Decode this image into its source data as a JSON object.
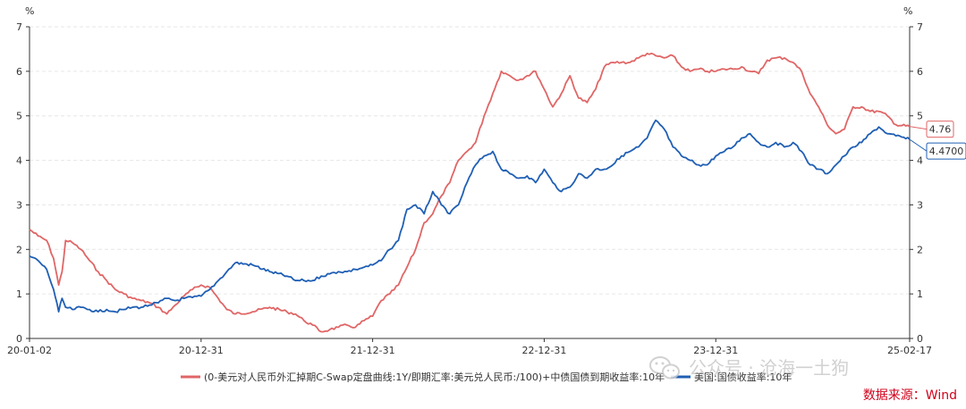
{
  "chart_data": {
    "type": "line",
    "y_unit_left": "%",
    "y_unit_right": "%",
    "ylim": [
      0,
      7
    ],
    "yticks": [
      "0",
      "1",
      "2",
      "3",
      "4",
      "5",
      "6",
      "7"
    ],
    "x_tick_labels": [
      "20-01-02",
      "20-12-31",
      "21-12-31",
      "22-12-31",
      "23-12-31",
      "25-02-17"
    ],
    "x_range": [
      2020.0,
      2025.13
    ],
    "x_tick_positions": [
      2020.0,
      2021.0,
      2022.0,
      2023.0,
      2024.0,
      2025.13
    ],
    "grid": "horizontal-dashed",
    "legend_position": "bottom",
    "series": [
      {
        "name": "(0-美元对人民币外汇掉期C-Swap定盘曲线:1Y/即期汇率:美元兑人民币:/100)+中债国债到期收益率:10年",
        "color": "#e06666",
        "end_label": "4.76",
        "x": [
          2020.0,
          2020.05,
          2020.1,
          2020.14,
          2020.17,
          2020.19,
          2020.21,
          2020.25,
          2020.3,
          2020.35,
          2020.4,
          2020.45,
          2020.5,
          2020.55,
          2020.6,
          2020.65,
          2020.7,
          2020.75,
          2020.8,
          2020.85,
          2020.9,
          2020.95,
          2021.0,
          2021.05,
          2021.1,
          2021.15,
          2021.2,
          2021.3,
          2021.4,
          2021.5,
          2021.55,
          2021.6,
          2021.65,
          2021.7,
          2021.75,
          2021.8,
          2021.85,
          2021.9,
          2021.95,
          2022.0,
          2022.05,
          2022.1,
          2022.15,
          2022.2,
          2022.25,
          2022.3,
          2022.35,
          2022.4,
          2022.45,
          2022.5,
          2022.55,
          2022.6,
          2022.65,
          2022.7,
          2022.75,
          2022.8,
          2022.85,
          2022.9,
          2022.95,
          2023.0,
          2023.05,
          2023.1,
          2023.15,
          2023.2,
          2023.25,
          2023.3,
          2023.35,
          2023.4,
          2023.45,
          2023.5,
          2023.55,
          2023.6,
          2023.65,
          2023.7,
          2023.75,
          2023.8,
          2023.85,
          2023.9,
          2023.95,
          2024.0,
          2024.05,
          2024.1,
          2024.15,
          2024.2,
          2024.25,
          2024.3,
          2024.35,
          2024.4,
          2024.45,
          2024.5,
          2024.55,
          2024.6,
          2024.65,
          2024.7,
          2024.75,
          2024.8,
          2024.85,
          2024.9,
          2024.95,
          2025.0,
          2025.05,
          2025.13
        ],
        "values": [
          2.45,
          2.3,
          2.2,
          1.8,
          1.2,
          1.5,
          2.2,
          2.15,
          2.0,
          1.75,
          1.5,
          1.3,
          1.1,
          1.0,
          0.9,
          0.85,
          0.8,
          0.7,
          0.55,
          0.75,
          0.95,
          1.1,
          1.2,
          1.15,
          0.9,
          0.65,
          0.55,
          0.6,
          0.7,
          0.6,
          0.55,
          0.4,
          0.3,
          0.15,
          0.2,
          0.25,
          0.3,
          0.25,
          0.4,
          0.5,
          0.85,
          1.0,
          1.2,
          1.6,
          2.0,
          2.6,
          2.8,
          3.2,
          3.5,
          4.0,
          4.2,
          4.4,
          5.0,
          5.5,
          6.0,
          5.9,
          5.8,
          5.9,
          6.0,
          5.6,
          5.2,
          5.5,
          5.9,
          5.4,
          5.3,
          5.6,
          6.1,
          6.2,
          6.2,
          6.2,
          6.3,
          6.4,
          6.35,
          6.3,
          6.35,
          6.1,
          6.0,
          6.05,
          6.0,
          6.0,
          6.05,
          6.05,
          6.1,
          6.0,
          5.95,
          6.25,
          6.3,
          6.3,
          6.2,
          6.0,
          5.5,
          5.2,
          4.8,
          4.6,
          4.7,
          5.2,
          5.2,
          5.1,
          5.1,
          5.0,
          4.8,
          4.76
        ]
      },
      {
        "name": "美国:国债收益率:10年",
        "color": "#1f5fb4",
        "end_label": "4.4700",
        "x": [
          2020.0,
          2020.05,
          2020.1,
          2020.14,
          2020.17,
          2020.19,
          2020.21,
          2020.25,
          2020.3,
          2020.35,
          2020.4,
          2020.45,
          2020.5,
          2020.55,
          2020.6,
          2020.65,
          2020.7,
          2020.75,
          2020.8,
          2020.85,
          2020.9,
          2020.95,
          2021.0,
          2021.05,
          2021.1,
          2021.15,
          2021.2,
          2021.3,
          2021.4,
          2021.5,
          2021.55,
          2021.6,
          2021.65,
          2021.7,
          2021.75,
          2021.8,
          2021.85,
          2021.9,
          2021.95,
          2022.0,
          2022.05,
          2022.1,
          2022.15,
          2022.2,
          2022.25,
          2022.3,
          2022.35,
          2022.4,
          2022.45,
          2022.5,
          2022.55,
          2022.6,
          2022.65,
          2022.7,
          2022.75,
          2022.8,
          2022.85,
          2022.9,
          2022.95,
          2023.0,
          2023.05,
          2023.1,
          2023.15,
          2023.2,
          2023.25,
          2023.3,
          2023.35,
          2023.4,
          2023.45,
          2023.5,
          2023.55,
          2023.6,
          2023.65,
          2023.7,
          2023.75,
          2023.8,
          2023.85,
          2023.9,
          2023.95,
          2024.0,
          2024.05,
          2024.1,
          2024.15,
          2024.2,
          2024.25,
          2024.3,
          2024.35,
          2024.4,
          2024.45,
          2024.5,
          2024.55,
          2024.6,
          2024.65,
          2024.7,
          2024.75,
          2024.8,
          2024.85,
          2024.9,
          2024.95,
          2025.0,
          2025.05,
          2025.13
        ],
        "values": [
          1.85,
          1.75,
          1.55,
          1.1,
          0.6,
          0.9,
          0.7,
          0.65,
          0.7,
          0.65,
          0.6,
          0.65,
          0.6,
          0.65,
          0.7,
          0.7,
          0.75,
          0.8,
          0.9,
          0.85,
          0.9,
          0.92,
          0.95,
          1.1,
          1.3,
          1.5,
          1.7,
          1.65,
          1.5,
          1.4,
          1.3,
          1.3,
          1.3,
          1.4,
          1.45,
          1.5,
          1.5,
          1.55,
          1.6,
          1.65,
          1.75,
          2.0,
          2.2,
          2.9,
          3.0,
          2.8,
          3.3,
          3.0,
          2.8,
          3.0,
          3.5,
          3.9,
          4.1,
          4.2,
          3.8,
          3.7,
          3.6,
          3.65,
          3.5,
          3.8,
          3.5,
          3.3,
          3.4,
          3.7,
          3.6,
          3.8,
          3.8,
          3.9,
          4.1,
          4.2,
          4.3,
          4.5,
          4.9,
          4.7,
          4.3,
          4.1,
          4.0,
          3.9,
          3.9,
          4.1,
          4.2,
          4.3,
          4.5,
          4.6,
          4.4,
          4.3,
          4.4,
          4.3,
          4.4,
          4.2,
          3.9,
          3.8,
          3.7,
          3.9,
          4.1,
          4.3,
          4.4,
          4.6,
          4.75,
          4.6,
          4.55,
          4.47
        ]
      }
    ]
  },
  "watermark": {
    "text": "公众号 · 沧海一土狗",
    "icon": "wechat-icon"
  },
  "source_label": "数据来源：Wind",
  "colors": {
    "grid": "#e6e6e6",
    "axis": "#333333"
  }
}
